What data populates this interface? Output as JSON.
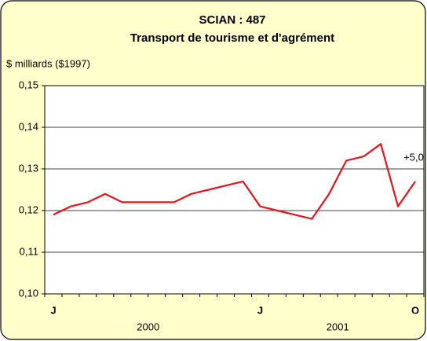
{
  "chart_data": {
    "type": "line",
    "title": "SCIAN : 487",
    "subtitle": "Transport de tourisme et d'agrément",
    "y_label": "$ milliards ($1997)",
    "categories": [
      "J",
      null,
      null,
      null,
      null,
      null,
      null,
      null,
      null,
      null,
      null,
      null,
      "J",
      null,
      null,
      null,
      null,
      null,
      null,
      null,
      null,
      "O"
    ],
    "years": [
      "2000",
      "2001"
    ],
    "series": [
      {
        "name": "SCIAN 487",
        "color": "#e8141b",
        "values": [
          0.119,
          0.121,
          0.122,
          0.124,
          0.122,
          0.122,
          0.122,
          0.122,
          0.124,
          0.125,
          0.126,
          0.127,
          0.121,
          0.12,
          0.119,
          0.118,
          0.124,
          0.132,
          0.133,
          0.136,
          0.121,
          0.127
        ]
      }
    ],
    "annotation": "+5,0",
    "ylim": [
      0.1,
      0.15
    ],
    "yticks": [
      {
        "value": 0.1,
        "label": "0,10"
      },
      {
        "value": 0.11,
        "label": "0,11"
      },
      {
        "value": 0.12,
        "label": "0,12"
      },
      {
        "value": 0.13,
        "label": "0,13"
      },
      {
        "value": 0.14,
        "label": "0,14"
      },
      {
        "value": 0.15,
        "label": "0,15"
      }
    ],
    "grid": true
  }
}
